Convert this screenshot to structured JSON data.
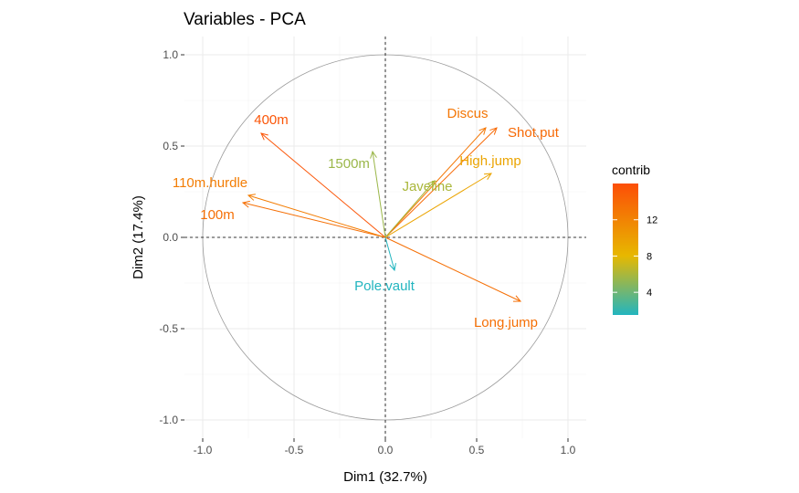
{
  "chart_data": {
    "type": "pca-correlation-circle",
    "title": "Variables - PCA",
    "xlabel": "Dim1 (32.7%)",
    "ylabel": "Dim2 (17.4%)",
    "xlim": [
      -1.1,
      1.1
    ],
    "ylim": [
      -1.1,
      1.1
    ],
    "x_ticks": [
      -1.0,
      -0.5,
      0.0,
      0.5,
      1.0
    ],
    "x_tick_labels": [
      "-1.0",
      "-0.5",
      "0.0",
      "0.5",
      "1.0"
    ],
    "y_ticks": [
      -1.0,
      -0.5,
      0.0,
      0.5,
      1.0
    ],
    "y_tick_labels": [
      "-1.0",
      "-0.5",
      "0.0",
      "0.5",
      "1.0"
    ],
    "grid": true,
    "unit_circle": true,
    "variables": [
      {
        "name": "100m",
        "x": -0.78,
        "y": 0.19,
        "contrib": 13.5
      },
      {
        "name": "110m.hurdle",
        "x": -0.75,
        "y": 0.23,
        "contrib": 12.5
      },
      {
        "name": "400m",
        "x": -0.68,
        "y": 0.57,
        "contrib": 15.5
      },
      {
        "name": "1500m",
        "x": -0.07,
        "y": 0.47,
        "contrib": 5.5
      },
      {
        "name": "Discus",
        "x": 0.55,
        "y": 0.6,
        "contrib": 13.0
      },
      {
        "name": "Shot.put",
        "x": 0.61,
        "y": 0.6,
        "contrib": 14.0
      },
      {
        "name": "High.jump",
        "x": 0.58,
        "y": 0.35,
        "contrib": 9.5
      },
      {
        "name": "Javeline",
        "x": 0.27,
        "y": 0.31,
        "contrib": 6.0
      },
      {
        "name": "Long.jump",
        "x": 0.74,
        "y": -0.35,
        "contrib": 13.5
      },
      {
        "name": "Pole.vault",
        "x": 0.05,
        "y": -0.18,
        "contrib": 1.5
      }
    ],
    "legend": {
      "title": "contrib",
      "placement": "right",
      "range": [
        1.5,
        16
      ],
      "ticks": [
        4,
        8,
        12
      ],
      "tick_labels": [
        "4",
        "8",
        "12"
      ],
      "colors": [
        "#22b5bf",
        "#e7b800",
        "#fc4e07"
      ]
    }
  }
}
